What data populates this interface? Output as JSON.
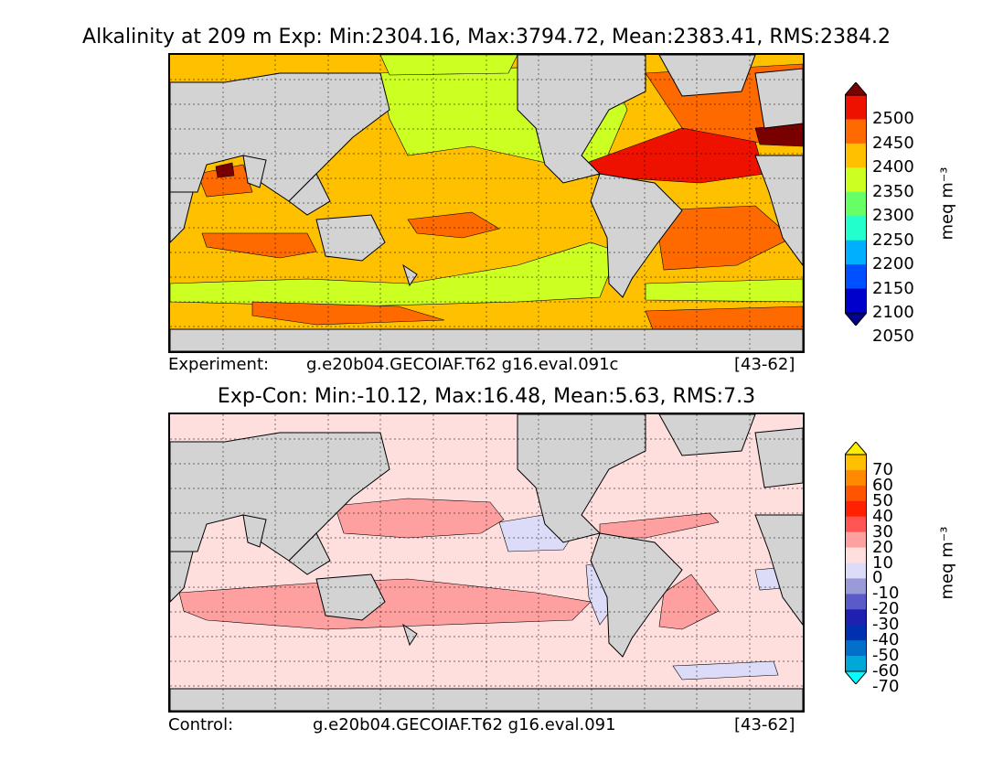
{
  "top": {
    "title": "Alkalinity at 209 m Exp: Min:2304.16, Max:3794.72, Mean:2383.41, RMS:2384.2",
    "footer_label": "Experiment:",
    "footer_case": "g.e20b04.GECOIAF.T62 g16.eval.091c",
    "footer_years": "[43-62]",
    "colorbar_unit": "meq m⁻³",
    "colorbar_ticks": [
      "2500",
      "2450",
      "2400",
      "2350",
      "2300",
      "2250",
      "2200",
      "2150",
      "2100",
      "2050"
    ],
    "colorbar_colors": [
      "#7a0000",
      "#ee1100",
      "#ff6a00",
      "#ffc000",
      "#ccff22",
      "#66ff66",
      "#22ffcc",
      "#00b0ff",
      "#0050ff",
      "#0000cc",
      "#000088"
    ],
    "colors": {
      "base": "#ffc000",
      "high": "#ff6a00",
      "veryhigh": "#ee1100",
      "max": "#7a0000",
      "low": "#ccff22"
    }
  },
  "bottom": {
    "title": "Exp-Con: Min:-10.12, Max:16.48, Mean:5.63, RMS:7.3",
    "footer_label": "Control:",
    "footer_case": "g.e20b04.GECOIAF.T62 g16.eval.091",
    "footer_years": "[43-62]",
    "colorbar_unit": "meq m⁻³",
    "colorbar_ticks": [
      "70",
      "60",
      "50",
      "40",
      "30",
      "20",
      "10",
      "0",
      "-10",
      "-20",
      "-30",
      "-40",
      "-50",
      "-60",
      "-70"
    ],
    "colorbar_colors": [
      "#ffee00",
      "#ffc000",
      "#ff8a00",
      "#ff5500",
      "#ff2200",
      "#ff5555",
      "#ffa0a0",
      "#ffdede",
      "#dcdcf8",
      "#9a9ad8",
      "#5a5ac8",
      "#2020b0",
      "#0030b0",
      "#0070c8",
      "#00a8d8",
      "#00ffff"
    ],
    "colors": {
      "base": "#ffdede",
      "pos": "#ffa0a0",
      "neg": "#dcdcf8"
    }
  },
  "land_color": "#d3d3d3"
}
